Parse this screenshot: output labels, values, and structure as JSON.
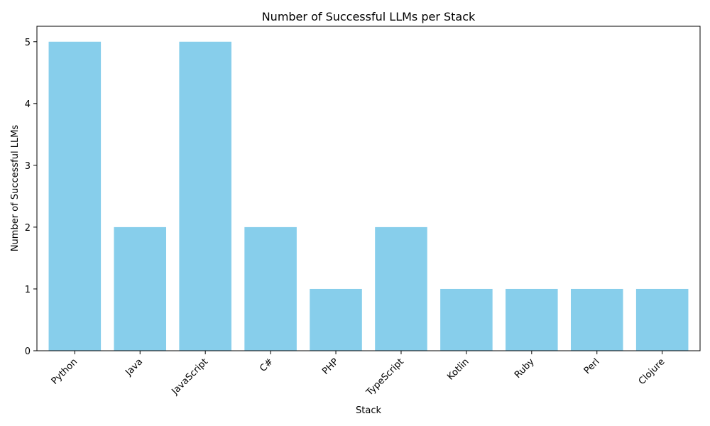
{
  "chart_data": {
    "type": "bar",
    "title": "Number of Successful LLMs per Stack",
    "xlabel": "Stack",
    "ylabel": "Number of Successful LLMs",
    "categories": [
      "Python",
      "Java",
      "JavaScript",
      "C#",
      "PHP",
      "TypeScript",
      "Kotlin",
      "Ruby",
      "Perl",
      "Clojure"
    ],
    "values": [
      5,
      2,
      5,
      2,
      1,
      2,
      1,
      1,
      1,
      1
    ],
    "ylim": [
      0,
      5.25
    ],
    "yticks": [
      0,
      1,
      2,
      3,
      4,
      5
    ],
    "grid": false,
    "legend": "none",
    "bar_color": "#87ceeb",
    "xtick_rotation": "45 degrees"
  }
}
